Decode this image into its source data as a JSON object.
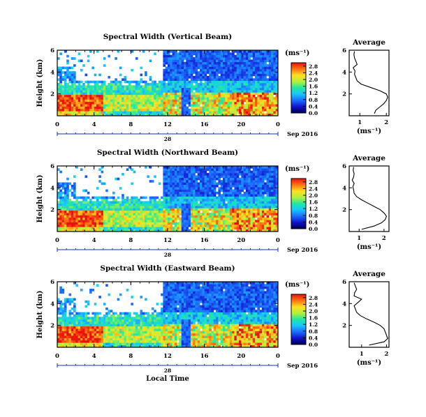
{
  "chart_data": [
    {
      "type": "heatmap",
      "title": "Spectral Width (Vertical Beam)",
      "ylabel": "Height (km)",
      "xlabel": "",
      "x_ticks": [
        "0",
        "4",
        "8",
        "12",
        "16",
        "20",
        "0"
      ],
      "y_ticks": [
        "2",
        "4",
        "6"
      ],
      "xlim": [
        0,
        24
      ],
      "ylim": [
        0,
        6
      ],
      "date_tick": "28",
      "date_label": "Sep 2016",
      "colorbar": {
        "unit": "(ms⁻¹)",
        "ticks": [
          "0.0",
          "0.4",
          "0.8",
          "1.2",
          "1.6",
          "2.0",
          "2.4",
          "2.8"
        ],
        "range": [
          0,
          3.0
        ]
      },
      "average_profile": {
        "title": "Average",
        "xlabel": "(ms⁻¹)",
        "x_ticks": [
          "1",
          "2"
        ],
        "y_ticks": [
          "2",
          "4",
          "6"
        ],
        "xlim": [
          0.6,
          2.1
        ],
        "ylim": [
          0,
          6
        ],
        "height": [
          0.2,
          0.5,
          0.8,
          1.1,
          1.4,
          1.7,
          2.0,
          2.3,
          2.6,
          2.9,
          3.2,
          3.5,
          3.8,
          4.1,
          4.4,
          4.7,
          5.0,
          5.3,
          5.6,
          5.9
        ],
        "width": [
          1.55,
          1.6,
          1.75,
          1.9,
          2.0,
          2.05,
          2.0,
          1.75,
          1.4,
          1.05,
          0.9,
          0.85,
          0.8,
          0.82,
          0.75,
          0.9,
          0.85,
          0.8,
          0.78,
          0.8
        ]
      }
    },
    {
      "type": "heatmap",
      "title": "Spectral Width (Northward Beam)",
      "ylabel": "Height (km)",
      "xlabel": "",
      "x_ticks": [
        "0",
        "4",
        "8",
        "12",
        "16",
        "20",
        "0"
      ],
      "y_ticks": [
        "2",
        "4",
        "6"
      ],
      "xlim": [
        0,
        24
      ],
      "ylim": [
        0,
        6
      ],
      "date_tick": "28",
      "date_label": "Sep 2016",
      "colorbar": {
        "unit": "(ms⁻¹)",
        "ticks": [
          "0.0",
          "0.4",
          "0.8",
          "1.2",
          "1.6",
          "2.0",
          "2.4",
          "2.8"
        ],
        "range": [
          0,
          3.0
        ]
      },
      "average_profile": {
        "title": "Average",
        "xlabel": "(ms⁻¹)",
        "x_ticks": [
          "1",
          "2"
        ],
        "y_ticks": [
          "2",
          "4",
          "6"
        ],
        "xlim": [
          0.6,
          2.2
        ],
        "ylim": [
          0,
          6
        ],
        "height": [
          0.2,
          0.5,
          0.8,
          1.1,
          1.4,
          1.7,
          2.0,
          2.3,
          2.6,
          2.9,
          3.2,
          3.5,
          3.8,
          4.1,
          4.4,
          4.7,
          5.0,
          5.3,
          5.6,
          5.9
        ],
        "width": [
          1.1,
          1.6,
          1.9,
          2.05,
          2.1,
          2.0,
          1.85,
          1.6,
          1.35,
          1.1,
          0.9,
          0.8,
          0.78,
          0.75,
          0.8,
          0.72,
          0.78,
          0.8,
          0.76,
          0.78
        ]
      }
    },
    {
      "type": "heatmap",
      "title": "Spectral Width (Eastward Beam)",
      "ylabel": "Height (km)",
      "xlabel": "Local Time",
      "x_ticks": [
        "0",
        "4",
        "8",
        "12",
        "16",
        "20",
        "0"
      ],
      "y_ticks": [
        "2",
        "4",
        "6"
      ],
      "xlim": [
        0,
        24
      ],
      "ylim": [
        0,
        6
      ],
      "date_tick": "28",
      "date_label": "Sep 2016",
      "colorbar": {
        "unit": "(ms⁻¹)",
        "ticks": [
          "0.0",
          "0.4",
          "0.8",
          "1.2",
          "1.6",
          "2.0",
          "2.4",
          "2.8"
        ],
        "range": [
          0,
          3.0
        ]
      },
      "average_profile": {
        "title": "Average",
        "xlabel": "(ms⁻¹)",
        "x_ticks": [
          "1",
          "2"
        ],
        "y_ticks": [
          "2",
          "4",
          "6"
        ],
        "xlim": [
          0.5,
          2.1
        ],
        "ylim": [
          0,
          6
        ],
        "height": [
          0.2,
          0.5,
          0.8,
          1.1,
          1.4,
          1.7,
          2.0,
          2.3,
          2.6,
          2.9,
          3.2,
          3.5,
          3.8,
          4.1,
          4.4,
          4.7,
          5.0,
          5.3,
          5.6,
          5.9
        ],
        "width": [
          1.3,
          1.9,
          2.05,
          2.0,
          1.95,
          1.9,
          1.75,
          1.5,
          1.2,
          0.95,
          0.8,
          0.75,
          0.7,
          0.85,
          1.0,
          0.7,
          0.72,
          0.8,
          0.75,
          0.7
        ]
      }
    }
  ]
}
